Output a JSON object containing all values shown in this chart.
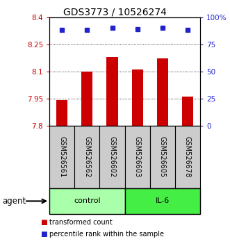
{
  "title": "GDS3773 / 10526274",
  "samples": [
    "GSM526561",
    "GSM526562",
    "GSM526602",
    "GSM526603",
    "GSM526605",
    "GSM526678"
  ],
  "transformed_counts": [
    7.94,
    8.1,
    8.18,
    8.11,
    8.17,
    7.96
  ],
  "percentile_ranks": [
    88,
    88,
    90,
    89,
    90,
    88
  ],
  "ylim_left": [
    7.8,
    8.4
  ],
  "ylim_right": [
    0,
    100
  ],
  "yticks_left": [
    7.8,
    7.95,
    8.1,
    8.25,
    8.4
  ],
  "yticks_right": [
    0,
    25,
    50,
    75,
    100
  ],
  "ytick_labels_left": [
    "7.8",
    "7.95",
    "8.1",
    "8.25",
    "8.4"
  ],
  "ytick_labels_right": [
    "0",
    "25",
    "50",
    "75",
    "100%"
  ],
  "groups": [
    {
      "label": "control",
      "indices": [
        0,
        1,
        2
      ],
      "color": "#aaffaa"
    },
    {
      "label": "IL-6",
      "indices": [
        3,
        4,
        5
      ],
      "color": "#44ee44"
    }
  ],
  "bar_color": "#cc0000",
  "dot_color": "#2222cc",
  "bar_width": 0.45,
  "bg_color": "#ffffff",
  "label_area_color": "#cccccc",
  "agent_label": "agent",
  "legend_items": [
    {
      "color": "#cc0000",
      "label": "transformed count"
    },
    {
      "color": "#2222cc",
      "label": "percentile rank within the sample"
    }
  ],
  "title_fontsize": 10,
  "tick_fontsize": 7.5,
  "sample_fontsize": 7
}
